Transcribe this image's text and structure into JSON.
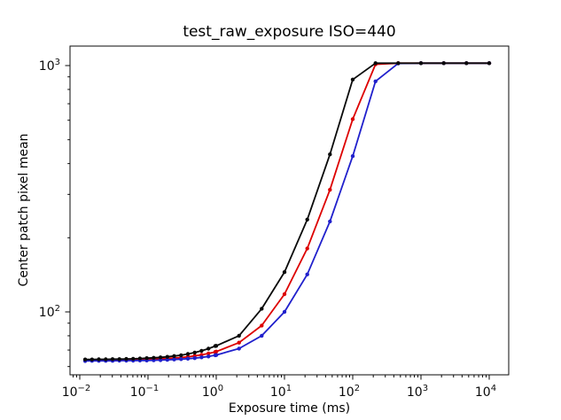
{
  "chart_data": {
    "type": "line",
    "title": "test_raw_exposure ISO=440",
    "xlabel": "Exposure time (ms)",
    "ylabel": "Center patch pixel mean",
    "x_scale": "log",
    "y_scale": "log",
    "grid": false,
    "legend": "none",
    "xlim": [
      0.0072,
      19300
    ],
    "ylim": [
      55.5,
      1200
    ],
    "x_major_ticks": [
      0.01,
      0.1,
      1,
      10,
      100,
      1000,
      10000
    ],
    "x_tick_labels": [
      "10⁻²",
      "10⁻¹",
      "10⁰",
      "10¹",
      "10²",
      "10³",
      "10⁴"
    ],
    "y_major_ticks": [
      100,
      1000
    ],
    "y_tick_labels": [
      "10²",
      "10³"
    ],
    "x": [
      0.012,
      0.0151,
      0.019,
      0.024,
      0.0302,
      0.0381,
      0.048,
      0.0605,
      0.0762,
      0.096,
      0.121,
      0.1524,
      0.192,
      0.2419,
      0.3048,
      0.384,
      0.4838,
      0.6095,
      0.768,
      0.9676,
      1.0,
      2.154,
      4.642,
      10.0,
      21.54,
      46.42,
      100.0,
      215.4,
      464.2,
      1000.0,
      2154.0,
      4642.0,
      10000.0
    ],
    "series": [
      {
        "name": "red-line",
        "color": "#dd0000",
        "values": [
          63.8,
          63.8,
          63.8,
          63.9,
          63.9,
          63.9,
          64.0,
          64.0,
          64.1,
          64.2,
          64.3,
          64.5,
          64.7,
          65.0,
          65.3,
          65.7,
          66.3,
          66.9,
          67.8,
          68.8,
          69.0,
          75.0,
          88.0,
          118.0,
          181.0,
          313.0,
          606.0,
          1012.0,
          1023.0,
          1023.0,
          1023.0,
          1023.0,
          1023.0
        ]
      },
      {
        "name": "blue-line",
        "color": "#2020cc",
        "values": [
          63.2,
          63.3,
          63.3,
          63.3,
          63.3,
          63.4,
          63.4,
          63.4,
          63.5,
          63.5,
          63.6,
          63.7,
          63.9,
          64.1,
          64.3,
          64.6,
          64.9,
          65.4,
          65.9,
          66.7,
          66.8,
          71.0,
          80.0,
          100.0,
          142.0,
          233.0,
          429.0,
          863.0,
          1020.0,
          1023.0,
          1023.0,
          1023.0,
          1023.0
        ]
      },
      {
        "name": "black-line",
        "color": "#0a0a0a",
        "values": [
          64.1,
          64.1,
          64.2,
          64.2,
          64.3,
          64.3,
          64.4,
          64.5,
          64.7,
          64.9,
          65.1,
          65.4,
          65.7,
          66.2,
          66.7,
          67.5,
          68.4,
          69.5,
          70.9,
          72.7,
          72.8,
          80.0,
          103.0,
          145.0,
          237.0,
          436.0,
          877.0,
          1023.0,
          1023.0,
          1023.0,
          1023.0,
          1023.0,
          1023.0
        ]
      }
    ]
  }
}
